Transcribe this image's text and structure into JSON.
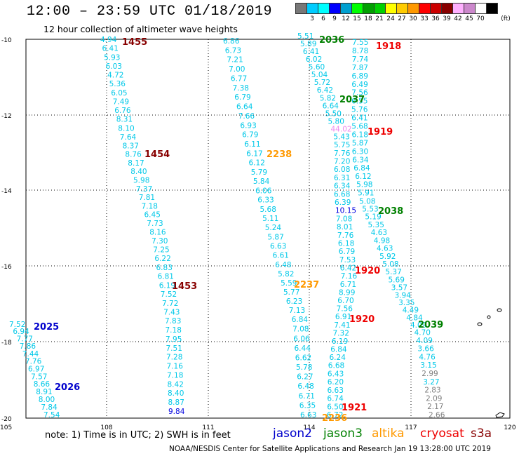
{
  "header": {
    "title": "12:00 – 23:59 UTC 01/18/2019",
    "subtitle": "12 hour collection of altimeter wave heights"
  },
  "color_scale": {
    "unit_label": "(ft)",
    "stops": [
      {
        "label": "",
        "color": "#787878"
      },
      {
        "label": "3",
        "color": "#00ccff"
      },
      {
        "label": "6",
        "color": "#00ffff"
      },
      {
        "label": "9",
        "color": "#0000ff"
      },
      {
        "label": "12",
        "color": "#00a0d0"
      },
      {
        "label": "15",
        "color": "#00ff00"
      },
      {
        "label": "18",
        "color": "#00a000"
      },
      {
        "label": "21",
        "color": "#00d000"
      },
      {
        "label": "24",
        "color": "#ffff00"
      },
      {
        "label": "27",
        "color": "#ffcc00"
      },
      {
        "label": "30",
        "color": "#ff9900"
      },
      {
        "label": "33",
        "color": "#ff0000"
      },
      {
        "label": "36",
        "color": "#cc0000"
      },
      {
        "label": "39",
        "color": "#880000"
      },
      {
        "label": "42",
        "color": "#ffb0ff"
      },
      {
        "label": "45",
        "color": "#cc88cc"
      },
      {
        "label": "70",
        "color": "#ffffff"
      },
      {
        "label": "",
        "color": "#000000"
      }
    ]
  },
  "map": {
    "x_ticks": [
      "105",
      "108",
      "111",
      "114",
      "117",
      "120"
    ],
    "y_ticks": [
      "-10",
      "-12",
      "-14",
      "-16",
      "-18",
      "-20"
    ],
    "value_colors": {
      "cyan": "#00c8e8",
      "blue": "#0000e0",
      "pink": "#ee88ee",
      "gray": "#808080"
    },
    "tracks": [
      {
        "values": [
          "4.94",
          "6.41",
          "5.93",
          "6.03",
          "4.72",
          "5.36",
          "6.05",
          "7.49",
          "6.76",
          "8.31",
          "8.10",
          "7.64",
          "8.37",
          "8.76",
          "8.17",
          "8.40",
          "5.98",
          "7.37",
          "7.81",
          "7.18",
          "6.45",
          "7.73",
          "8.16",
          "7.30",
          "7.25",
          "6.22",
          "6.83",
          "6.81",
          "6.19",
          "7.52",
          "7.72",
          "7.43",
          "7.83",
          "7.18",
          "7.95",
          "7.51",
          "7.28",
          "7.16",
          "7.18",
          "8.42",
          "8.40",
          "8.87",
          "9.84"
        ],
        "colors": {
          "42": "blue"
        }
      },
      {
        "values": [
          "6.86",
          "6.73",
          "7.21",
          "7.00",
          "6.77",
          "7.38",
          "6.79",
          "6.64",
          "7.66",
          "6.93",
          "6.79",
          "6.11",
          "6.17",
          "6.12",
          "5.79",
          "5.84",
          "6.06",
          "6.33",
          "5.68",
          "5.11",
          "5.24",
          "5.87",
          "6.63",
          "6.61",
          "6.48",
          "5.82",
          "5.59",
          "5.77",
          "6.23",
          "7.13",
          "6.84",
          "7.08",
          "6.06",
          "6.44",
          "6.62",
          "5.78",
          "6.27",
          "6.48",
          "6.71",
          "6.35",
          "6.63"
        ],
        "colors": {}
      },
      {
        "values": [
          "5.51",
          "5.89",
          "6.41",
          "6.02",
          "5.60",
          "5.04",
          "5.72",
          "6.42",
          "5.82",
          "6.64",
          "5.50",
          "5.80",
          "44.02",
          "5.43",
          "5.75",
          "7.76",
          "7.20",
          "6.08",
          "6.31",
          "6.34",
          "6.68",
          "6.39",
          "10.15",
          "7.08",
          "8.01",
          "7.76",
          "6.18",
          "6.79",
          "7.53",
          "6.42",
          "7.16",
          "6.71",
          "8.99",
          "6.70",
          "7.56",
          "6.91",
          "7.41",
          "7.32",
          "6.19",
          "6.84",
          "6.24",
          "6.68",
          "6.43",
          "6.20",
          "6.63",
          "6.74",
          "6.50",
          "6.72"
        ],
        "colors": {
          "12": "pink",
          "22": "blue"
        }
      },
      {
        "values": [
          "7.55",
          "8.78",
          "7.74",
          "7.87",
          "6.89",
          "6.49",
          "7.56",
          "6.55",
          "5.76",
          "6.41",
          "5.68",
          "6.18",
          "5.87",
          "6.30",
          "6.34",
          "6.84",
          "6.12",
          "5.98",
          "5.91",
          "5.08",
          "5.53",
          "5.19",
          "5.35",
          "4.63",
          "4.98",
          "4.63",
          "5.92",
          "5.08",
          "5.37",
          "5.69",
          "3.57",
          "3.94",
          "3.35",
          "4.49",
          "4.84",
          "4.09",
          "4.70",
          "4.09",
          "3.66",
          "4.76",
          "3.15",
          "2.99",
          "3.27",
          "2.83",
          "2.09",
          "2.17",
          "2.66"
        ],
        "colors": {
          "41": "gray",
          "43": "gray",
          "44": "gray",
          "45": "gray",
          "46": "gray"
        }
      },
      {
        "values": [
          "7.52",
          "6.94",
          "7.77",
          "7.86",
          "7.44",
          "7.76",
          "6.97",
          "7.57",
          "8.66",
          "8.91",
          "8.00",
          "7.84",
          "7.54"
        ],
        "colors": {}
      }
    ],
    "pass_labels": [
      {
        "text": "1455",
        "color": "#880000"
      },
      {
        "text": "1454",
        "color": "#880000"
      },
      {
        "text": "1453",
        "color": "#880000"
      },
      {
        "text": "2036",
        "color": "#008000"
      },
      {
        "text": "2037",
        "color": "#008000"
      },
      {
        "text": "2038",
        "color": "#008000"
      },
      {
        "text": "2039",
        "color": "#008000"
      },
      {
        "text": "1918",
        "color": "#ee0000"
      },
      {
        "text": "1919",
        "color": "#ee0000"
      },
      {
        "text": "1920",
        "color": "#ee0000"
      },
      {
        "text": "1920",
        "color": "#ee0000"
      },
      {
        "text": "1921",
        "color": "#ee0000"
      },
      {
        "text": "2238",
        "color": "#ff9900"
      },
      {
        "text": "2237",
        "color": "#ff9900"
      },
      {
        "text": "2236",
        "color": "#ff9900"
      },
      {
        "text": "2025",
        "color": "#0000cc"
      },
      {
        "text": "2026",
        "color": "#0000cc"
      }
    ]
  },
  "footer": {
    "note": "note:  1) Time is in UTC; 2) SWH is in feet",
    "satellites": [
      {
        "name": "jason2",
        "color": "#0000cc"
      },
      {
        "name": "jason3",
        "color": "#008000"
      },
      {
        "name": "altika",
        "color": "#ff9900"
      },
      {
        "name": "cryosat",
        "color": "#ee0000"
      },
      {
        "name": "s3a",
        "color": "#880000"
      }
    ],
    "credit": "NOAA/NESDIS Center for Satellite Applications and Research    Jan 19 13:28:00 UTC 2019"
  }
}
